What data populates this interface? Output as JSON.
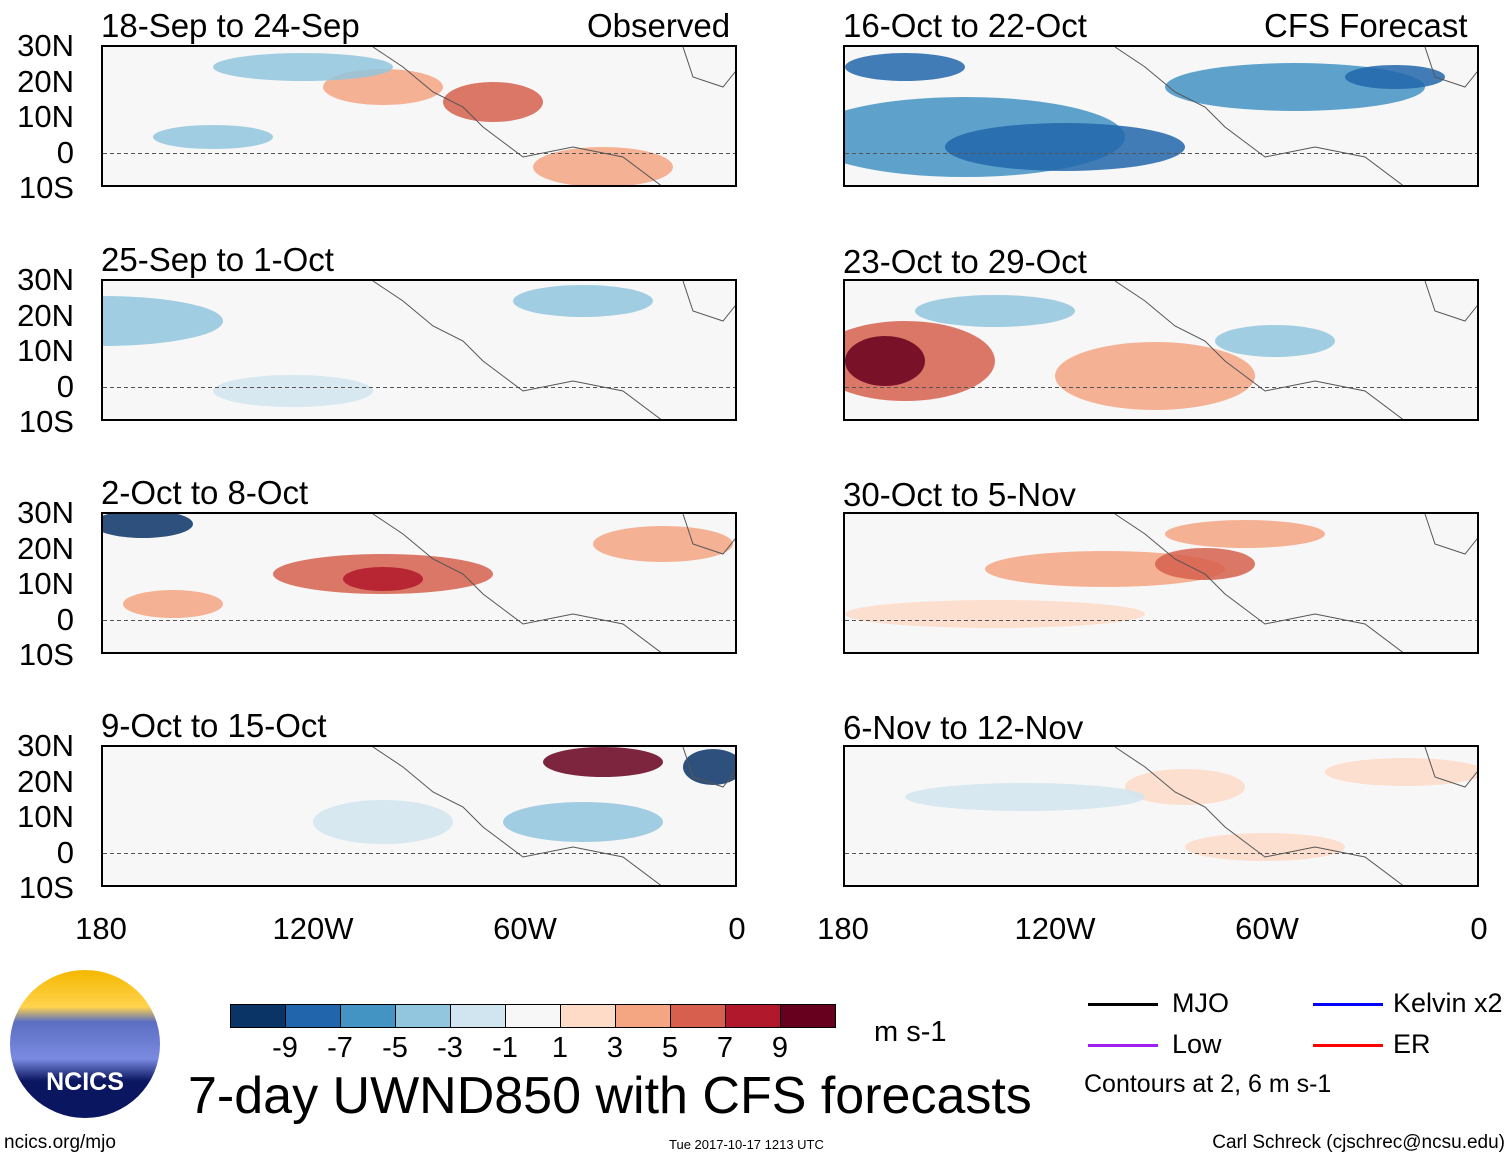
{
  "figure": {
    "title": "7-day UWND850 with CFS forecasts",
    "units": "m s-1",
    "contour_note": "Contours at 2, 6 m s-1",
    "site": "ncics.org/mjo",
    "timestamp": "Tue 2017-10-17 1213 UTC",
    "author": "Carl Schreck (cjschrec@ncsu.edu)",
    "logo_text": "NCICS"
  },
  "columns": {
    "left": "Observed",
    "right": "CFS Forecast"
  },
  "panels_left": [
    "18-Sep to 24-Sep",
    "25-Sep to 1-Oct",
    "2-Oct to 8-Oct",
    "9-Oct to 15-Oct"
  ],
  "panels_right": [
    "16-Oct to 22-Oct",
    "23-Oct to 29-Oct",
    "30-Oct to 5-Nov",
    "6-Nov to 12-Nov"
  ],
  "lat_labels": [
    "30N",
    "20N",
    "10N",
    "0",
    "10S"
  ],
  "lon_labels": [
    "180",
    "120W",
    "60W",
    "0"
  ],
  "colorbar": {
    "colors": [
      "#0a3366",
      "#2166ac",
      "#4393c3",
      "#92c5de",
      "#d1e5f0",
      "#f7f7f7",
      "#fddbc7",
      "#f4a582",
      "#d6604d",
      "#b2182b",
      "#67001f"
    ],
    "labels": [
      "-9",
      "-7",
      "-5",
      "-3",
      "-1",
      "1",
      "3",
      "5",
      "7",
      "9"
    ]
  },
  "legend": [
    {
      "label": "MJO",
      "color": "#000000"
    },
    {
      "label": "Kelvin x2",
      "color": "#0000ff"
    },
    {
      "label": "Low",
      "color": "#a020f0"
    },
    {
      "label": "ER",
      "color": "#ff0000"
    }
  ]
}
